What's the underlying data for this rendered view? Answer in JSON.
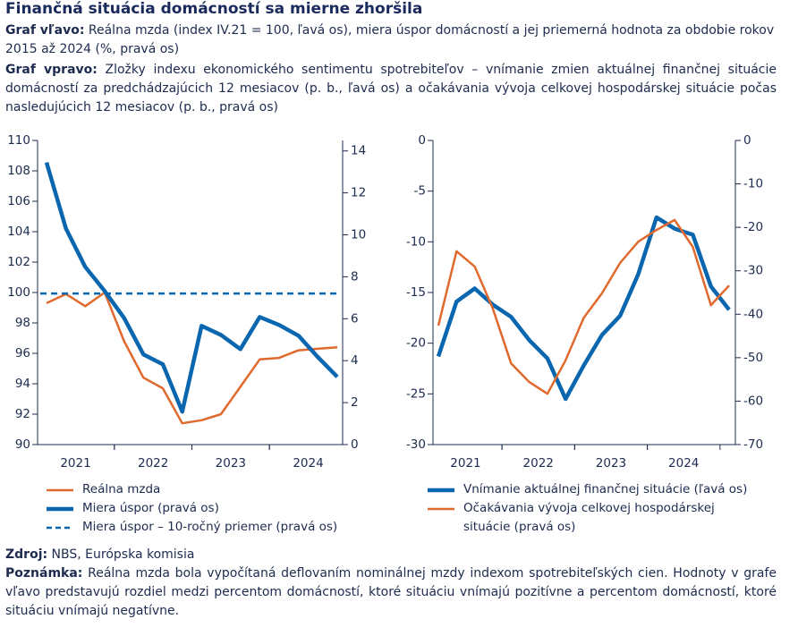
{
  "title": "Finančná situácia domácností sa mierne zhoršila",
  "left_caption": {
    "label": "Graf vľavo:",
    "text": "Reálna mzda (index IV.21 = 100, ľavá os), miera úspor domácností a jej priemerná hodnota za obdobie rokov 2015 až 2024 (%, pravá os)"
  },
  "right_caption": {
    "label": "Graf vpravo:",
    "text": "Zložky indexu ekonomického sentimentu spotrebiteľov – vnímanie zmien aktuálnej finančnej situácie domácností za predchádzajúcich 12 mesiacov (p. b., ľavá os) a očakávania vývoja celkovej hospodárskej situácie počas nasledujúcich 12 mesiacov (p. b., pravá os)"
  },
  "chart_data": [
    {
      "type": "line",
      "years": [
        "2021",
        "2022",
        "2023",
        "2024"
      ],
      "ylim": [
        90,
        110
      ],
      "yticks": [
        90,
        92,
        94,
        96,
        98,
        100,
        102,
        104,
        106,
        108,
        110
      ],
      "y2lim": [
        0,
        14.5
      ],
      "y2ticks": [
        0,
        2,
        4,
        6,
        8,
        10,
        12,
        14
      ],
      "series": [
        {
          "name": "Reálna mzda",
          "color": "#e0692d",
          "values": [
            99.3,
            99.9,
            99.1,
            100.0,
            96.8,
            94.4,
            93.7,
            91.4,
            91.6,
            92.0,
            93.8,
            95.6,
            95.7,
            96.2,
            96.3,
            96.4
          ]
        },
        {
          "name": "Miera úspor (pravá os)",
          "color": "#0a66ae",
          "axis": "y2",
          "values": [
            13.45,
            10.3,
            8.47,
            7.32,
            6.04,
            4.3,
            3.83,
            1.57,
            5.66,
            5.23,
            4.55,
            6.08,
            5.7,
            5.19,
            4.17,
            3.23
          ]
        },
        {
          "name": "Miera úspor – 10-ročný priemer (pravá os)",
          "color": "#0a66ae",
          "axis": "y2",
          "dashed": true,
          "value": 7.2
        }
      ]
    },
    {
      "type": "line",
      "years": [
        "2021",
        "2022",
        "2023",
        "2024"
      ],
      "ylim": [
        -30,
        0
      ],
      "yticks": [
        -30,
        -25,
        -20,
        -15,
        -10,
        -5,
        0
      ],
      "y2lim": [
        -70,
        0
      ],
      "y2ticks": [
        -70,
        -60,
        -50,
        -40,
        -30,
        -20,
        -10,
        0
      ],
      "series": [
        {
          "name": "Vnímanie aktuálnej finančnej situácie (ľavá os)",
          "color": "#0a66ae",
          "values": [
            -21.3,
            -15.9,
            -14.6,
            -16.2,
            -17.4,
            -19.7,
            -21.5,
            -25.5,
            -22.2,
            -19.2,
            -17.3,
            -13.2,
            -7.6,
            -8.7,
            -9.3,
            -14.4,
            -16.7
          ]
        },
        {
          "name": "Očakávania vývoja celkovej hospodárskej situácie (pravá os)",
          "color": "#e0692d",
          "axis": "y2",
          "values": [
            -42.6,
            -25.5,
            -29.0,
            -38.7,
            -51.3,
            -55.6,
            -58.3,
            -50.6,
            -40.8,
            -35.2,
            -28.2,
            -23.3,
            -20.6,
            -18.3,
            -24.5,
            -37.9,
            -33.4
          ]
        }
      ]
    }
  ],
  "source": {
    "label": "Zdroj:",
    "text": "NBS, Európska komisia"
  },
  "note": {
    "label": "Poznámka:",
    "text": "Reálna mzda bola vypočítaná deflovaním nominálnej mzdy indexom spotrebiteľských cien. Hodnoty v grafe vľavo predstavujú rozdiel medzi percentom domácností, ktoré situáciu vnímajú pozitívne a percentom domácností, ktoré situáciu vnímajú negatívne."
  }
}
